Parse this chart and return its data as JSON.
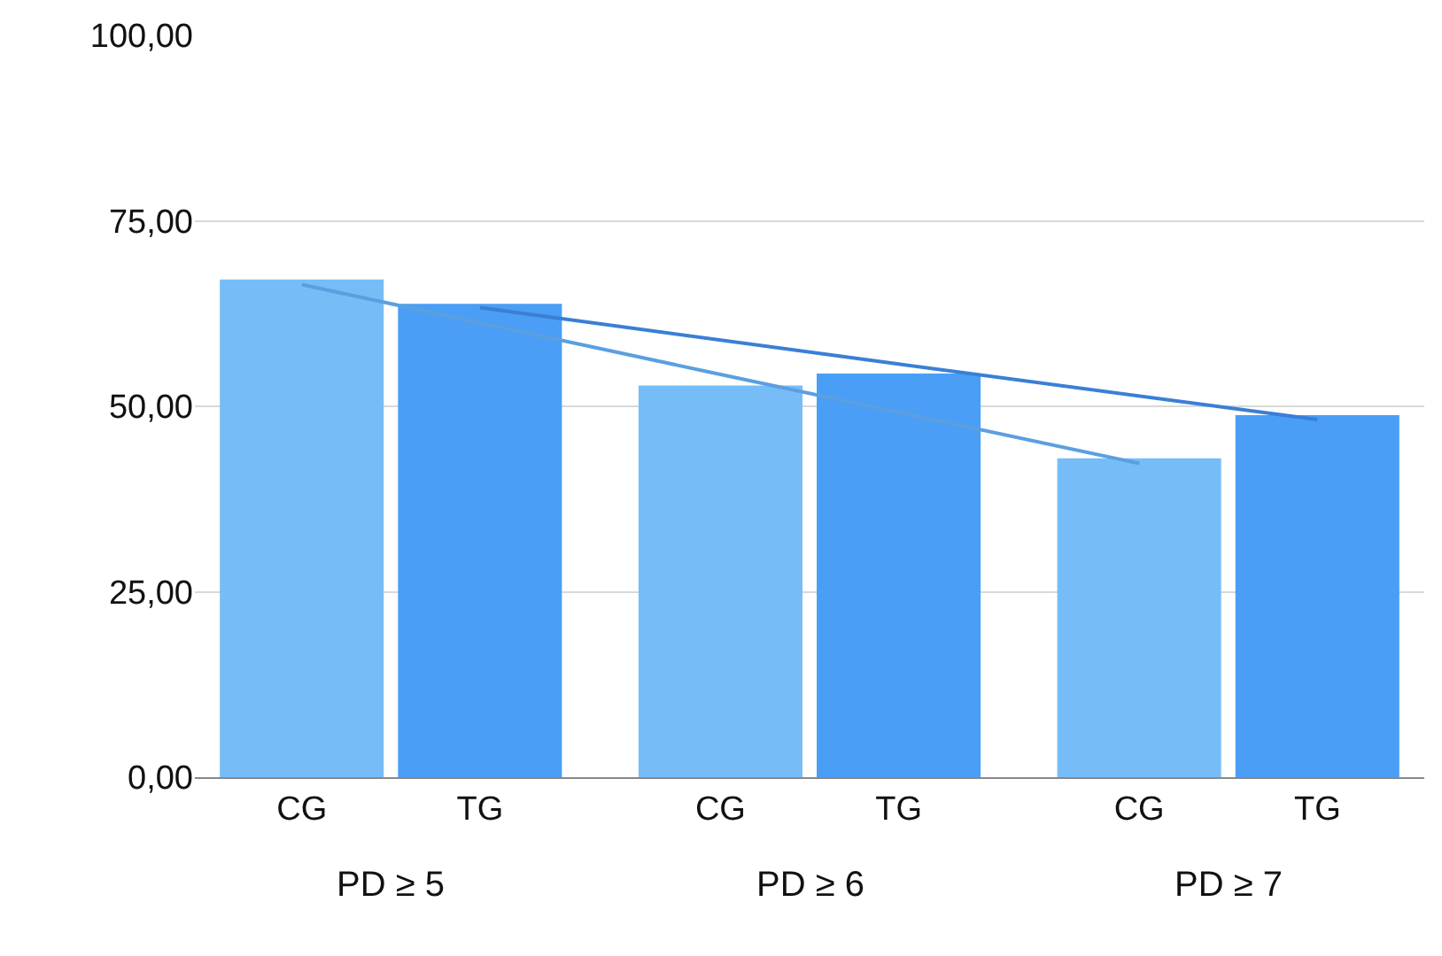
{
  "chart_data": {
    "type": "bar",
    "categories": [
      "PD ≥ 5",
      "PD ≥ 6",
      "PD ≥ 7"
    ],
    "series": [
      {
        "name": "CG",
        "color": "#76bdf8",
        "values": [
          67.1,
          52.8,
          43.0
        ]
      },
      {
        "name": "TG",
        "color": "#4a9ef5",
        "values": [
          63.8,
          54.4,
          48.8
        ]
      },
      {
        "type": "line",
        "color": "#5b9fe0",
        "values": [
          66.4,
          54.3,
          42.3
        ]
      },
      {
        "type": "line",
        "color": "#3a7fd6",
        "values": [
          63.3,
          55.7,
          48.2
        ]
      }
    ],
    "ylim": [
      0,
      100
    ],
    "yticks": [
      {
        "value": 0,
        "label": "0,00"
      },
      {
        "value": 25,
        "label": "25,00"
      },
      {
        "value": 50,
        "label": "50,00"
      },
      {
        "value": 75,
        "label": "75,00"
      },
      {
        "value": 100,
        "label": "100,00"
      }
    ],
    "grid": "y",
    "legend": false
  }
}
